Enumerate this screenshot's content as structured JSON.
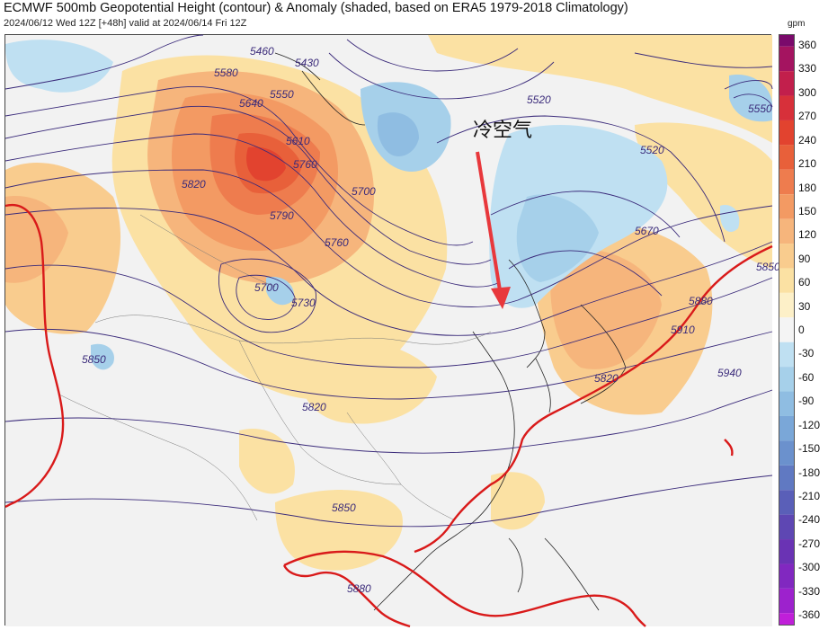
{
  "header": {
    "title": "ECMWF 500mb Geopotential Height (contour) & Anomaly (shaded, based on ERA5 1979-2018 Climatology)",
    "subtitle": "2024/06/12 Wed 12Z [+48h] valid at 2024/06/14 Fri 12Z"
  },
  "annotation": {
    "text": "冷空气",
    "arrow_color": "#e8383c"
  },
  "contour_labels": [
    "5460",
    "5430",
    "5580",
    "5550",
    "5640",
    "5610",
    "5760",
    "5700",
    "5820",
    "5790",
    "5760",
    "5700",
    "5730",
    "5520",
    "5520",
    "5670",
    "5550",
    "5850",
    "5880",
    "5910",
    "5940",
    "5820",
    "5820",
    "5850",
    "5850",
    "5880"
  ],
  "colorbar": {
    "unit": "gpm",
    "labels": [
      "360",
      "330",
      "300",
      "270",
      "240",
      "210",
      "180",
      "150",
      "120",
      "90",
      "60",
      "30",
      "0",
      "-30",
      "-60",
      "-90",
      "-120",
      "-150",
      "-180",
      "-210",
      "-240",
      "-270",
      "-300",
      "-330",
      "-360"
    ],
    "colors": [
      "#7a0a6b",
      "#a41460",
      "#c21f4c",
      "#d7303a",
      "#e2432f",
      "#e8603a",
      "#ee7c4e",
      "#f39a63",
      "#f6b57c",
      "#f9cc8e",
      "#fbe1a3",
      "#fdf0c8",
      "#f4f4f4",
      "#bfe0f2",
      "#a6d0ea",
      "#8fbde2",
      "#7aa7d8",
      "#6b91cd",
      "#6079c2",
      "#5a5fb8",
      "#5e47b3",
      "#6a33b4",
      "#8128c0",
      "#9d22cd",
      "#c01fd9"
    ]
  }
}
